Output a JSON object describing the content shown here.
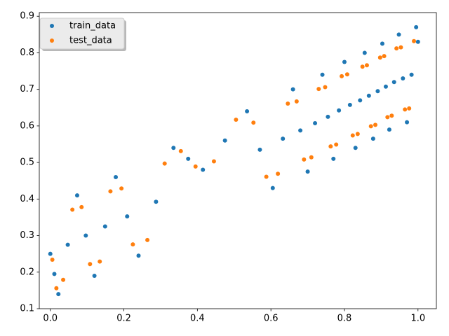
{
  "chart_data": {
    "type": "scatter",
    "series": [
      {
        "name": "train_data",
        "color": "#1f77b4",
        "x": [
          0,
          0.011,
          0.022,
          0.0475,
          0.073,
          0.0965,
          0.12,
          0.149,
          0.178,
          0.209,
          0.24,
          0.2875,
          0.335,
          0.375,
          0.415,
          0.475,
          0.535,
          0.57,
          0.605,
          0.6325,
          0.66,
          0.68,
          0.7,
          0.72,
          0.74,
          0.755,
          0.77,
          0.785,
          0.8,
          0.815,
          0.83,
          0.8425,
          0.855,
          0.8665,
          0.878,
          0.8905,
          0.903,
          0.9125,
          0.922,
          0.935,
          0.948,
          0.959,
          0.97,
          0.9825,
          0.995,
          1.0
        ],
        "values": [
          0.25,
          0.195,
          0.14,
          0.275,
          0.41,
          0.3,
          0.19,
          0.325,
          0.46,
          0.3525,
          0.245,
          0.3925,
          0.54,
          0.51,
          0.48,
          0.56,
          0.64,
          0.535,
          0.43,
          0.565,
          0.7,
          0.5875,
          0.475,
          0.6075,
          0.74,
          0.625,
          0.51,
          0.6425,
          0.775,
          0.6575,
          0.54,
          0.67,
          0.8,
          0.6825,
          0.565,
          0.695,
          0.825,
          0.7075,
          0.59,
          0.72,
          0.85,
          0.73,
          0.61,
          0.74,
          0.87,
          0.83
        ]
      },
      {
        "name": "test_data",
        "color": "#ff7f0e",
        "x": [
          0.0055,
          0.0165,
          0.035,
          0.06,
          0.085,
          0.108,
          0.1345,
          0.1635,
          0.1935,
          0.2245,
          0.264,
          0.311,
          0.355,
          0.395,
          0.445,
          0.505,
          0.5525,
          0.5875,
          0.619,
          0.646,
          0.67,
          0.69,
          0.71,
          0.73,
          0.7475,
          0.7625,
          0.7775,
          0.7925,
          0.8075,
          0.8225,
          0.836,
          0.849,
          0.861,
          0.872,
          0.884,
          0.897,
          0.908,
          0.917,
          0.9285,
          0.9415,
          0.9535,
          0.9645,
          0.976,
          0.989
        ],
        "values": [
          0.234,
          0.156,
          0.179,
          0.371,
          0.378,
          0.222,
          0.229,
          0.421,
          0.429,
          0.276,
          0.288,
          0.497,
          0.531,
          0.489,
          0.503,
          0.617,
          0.609,
          0.461,
          0.469,
          0.661,
          0.667,
          0.508,
          0.514,
          0.701,
          0.706,
          0.544,
          0.549,
          0.736,
          0.741,
          0.574,
          0.578,
          0.762,
          0.766,
          0.599,
          0.603,
          0.787,
          0.791,
          0.624,
          0.628,
          0.812,
          0.815,
          0.645,
          0.648,
          0.832
        ]
      }
    ],
    "xlim": [
      -0.03,
      1.05
    ],
    "ylim": [
      0.1,
      0.91
    ],
    "xticks": [
      {
        "value": 0,
        "label": "0.0"
      },
      0.2,
      0.4,
      0.6,
      0.8,
      {
        "value": 1,
        "label": "1.0"
      }
    ],
    "yticks": [
      0.1,
      0.2,
      0.3,
      0.4,
      0.5,
      0.6,
      0.7,
      0.8,
      0.9
    ],
    "legend": "upper left",
    "grid": false
  }
}
